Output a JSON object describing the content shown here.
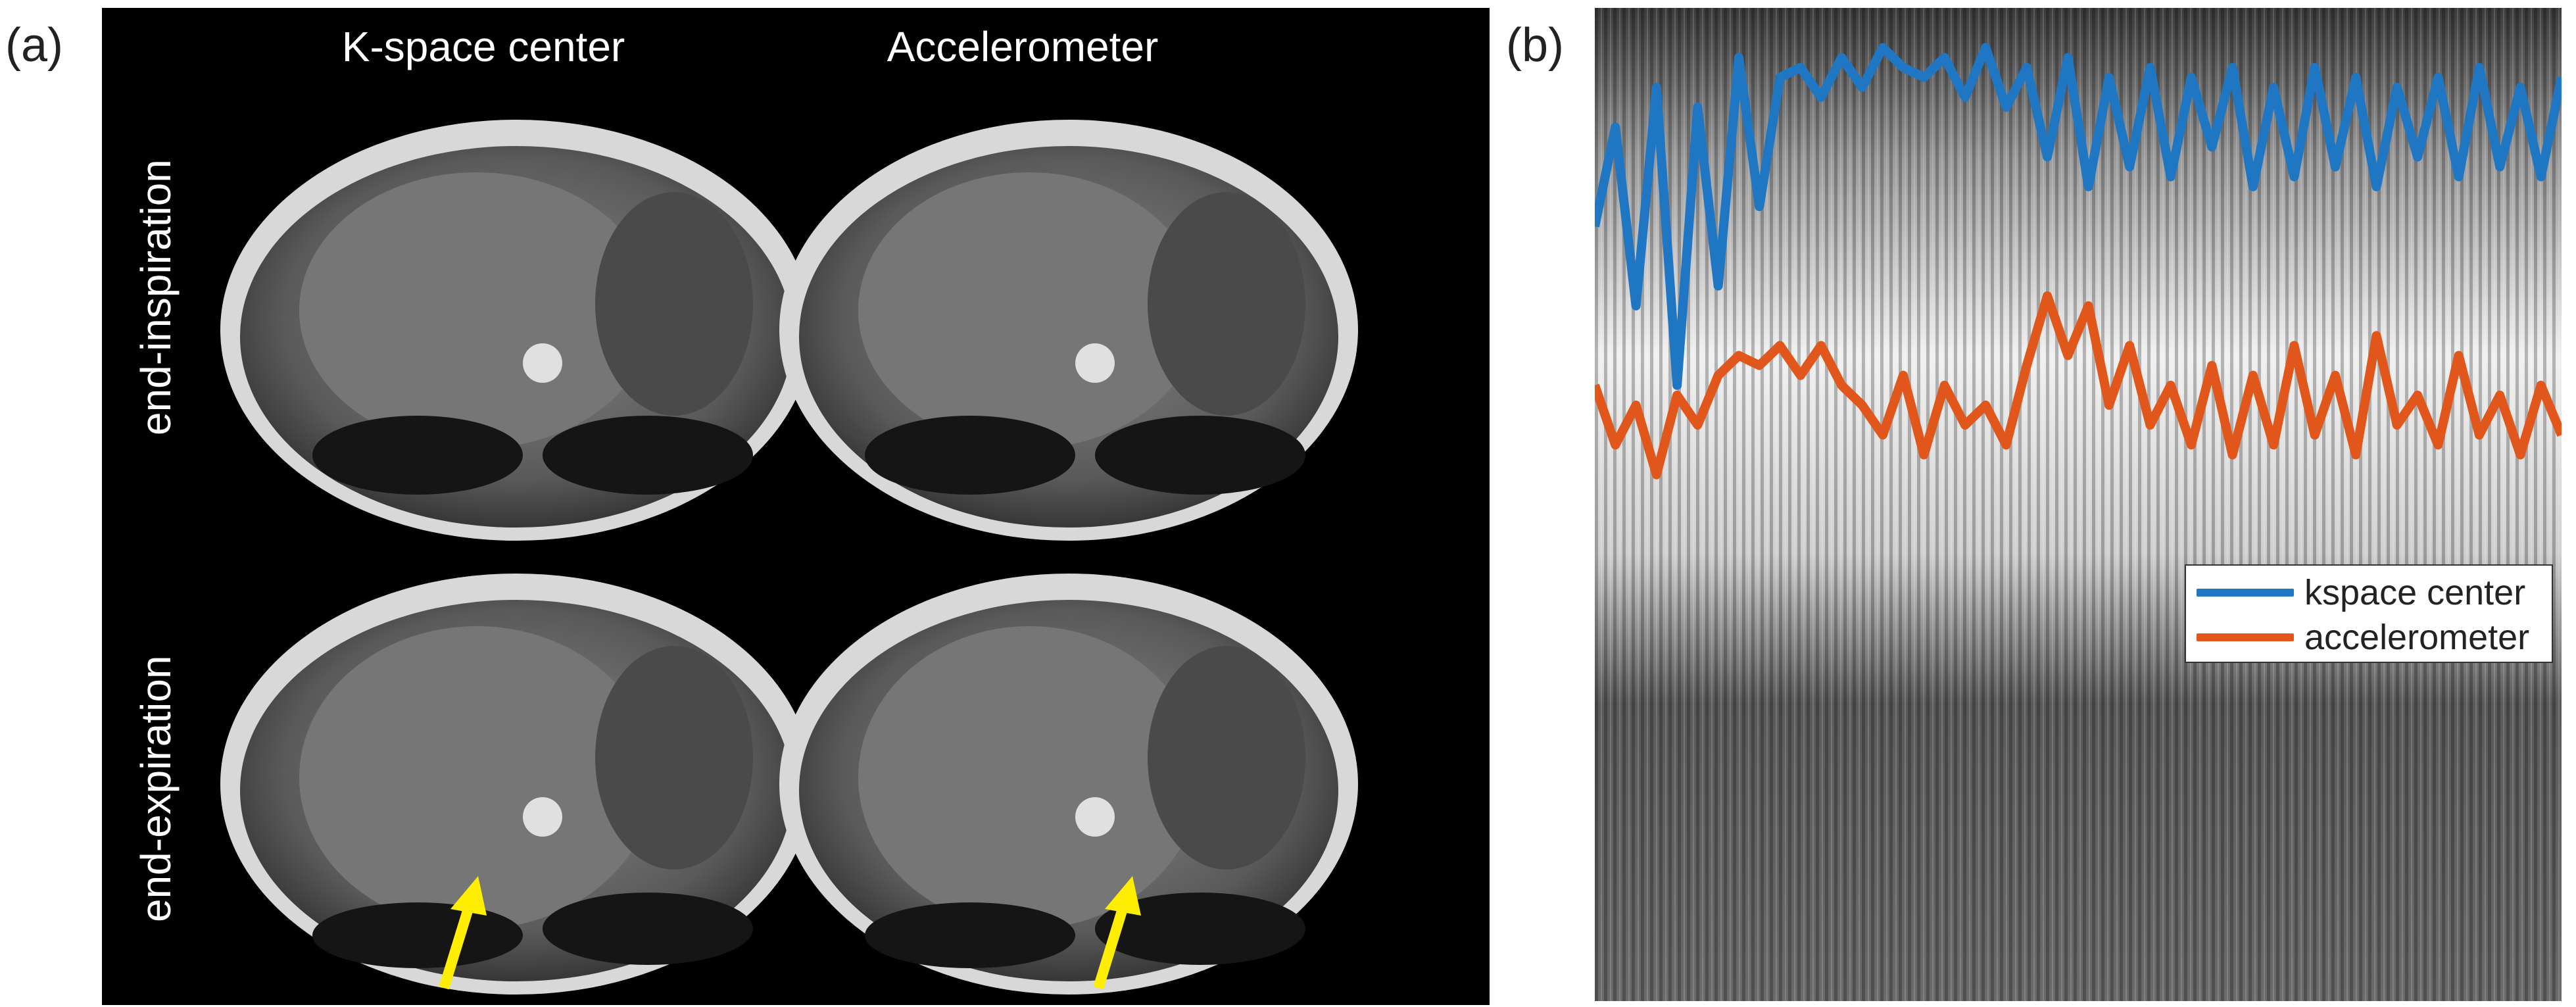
{
  "panel_a": {
    "label": "(a)",
    "columns": [
      "K-space center",
      "Accelerometer"
    ],
    "rows": [
      "end-inspiration",
      "end-expiration"
    ]
  },
  "panel_b": {
    "label": "(b)",
    "legend": [
      {
        "name": "kspace center",
        "color": "#1f77c4"
      },
      {
        "name": "accelerometer",
        "color": "#e0561b"
      }
    ]
  },
  "colors": {
    "arrow": "#ffee00",
    "kspace": "#1f77c4",
    "accel": "#e0561b"
  },
  "chart_data": {
    "type": "line",
    "title": "",
    "xlabel": "",
    "ylabel": "",
    "legend_position": "right-middle",
    "series": [
      {
        "name": "kspace center",
        "values": [
          0.78,
          0.88,
          0.7,
          0.92,
          0.62,
          0.9,
          0.72,
          0.95,
          0.8,
          0.93,
          0.94,
          0.91,
          0.95,
          0.92,
          0.96,
          0.94,
          0.93,
          0.95,
          0.91,
          0.96,
          0.9,
          0.94,
          0.85,
          0.95,
          0.82,
          0.93,
          0.84,
          0.94,
          0.83,
          0.93,
          0.86,
          0.94,
          0.82,
          0.92,
          0.83,
          0.94,
          0.84,
          0.93,
          0.82,
          0.92,
          0.85,
          0.93,
          0.83,
          0.94,
          0.84,
          0.92,
          0.83,
          0.93
        ]
      },
      {
        "name": "accelerometer",
        "values": [
          0.62,
          0.56,
          0.6,
          0.53,
          0.61,
          0.58,
          0.63,
          0.65,
          0.64,
          0.66,
          0.63,
          0.66,
          0.62,
          0.6,
          0.57,
          0.63,
          0.55,
          0.62,
          0.58,
          0.6,
          0.56,
          0.64,
          0.71,
          0.65,
          0.7,
          0.6,
          0.66,
          0.58,
          0.62,
          0.56,
          0.64,
          0.55,
          0.63,
          0.56,
          0.66,
          0.57,
          0.63,
          0.55,
          0.67,
          0.58,
          0.61,
          0.56,
          0.65,
          0.57,
          0.61,
          0.55,
          0.62,
          0.57
        ]
      }
    ]
  }
}
